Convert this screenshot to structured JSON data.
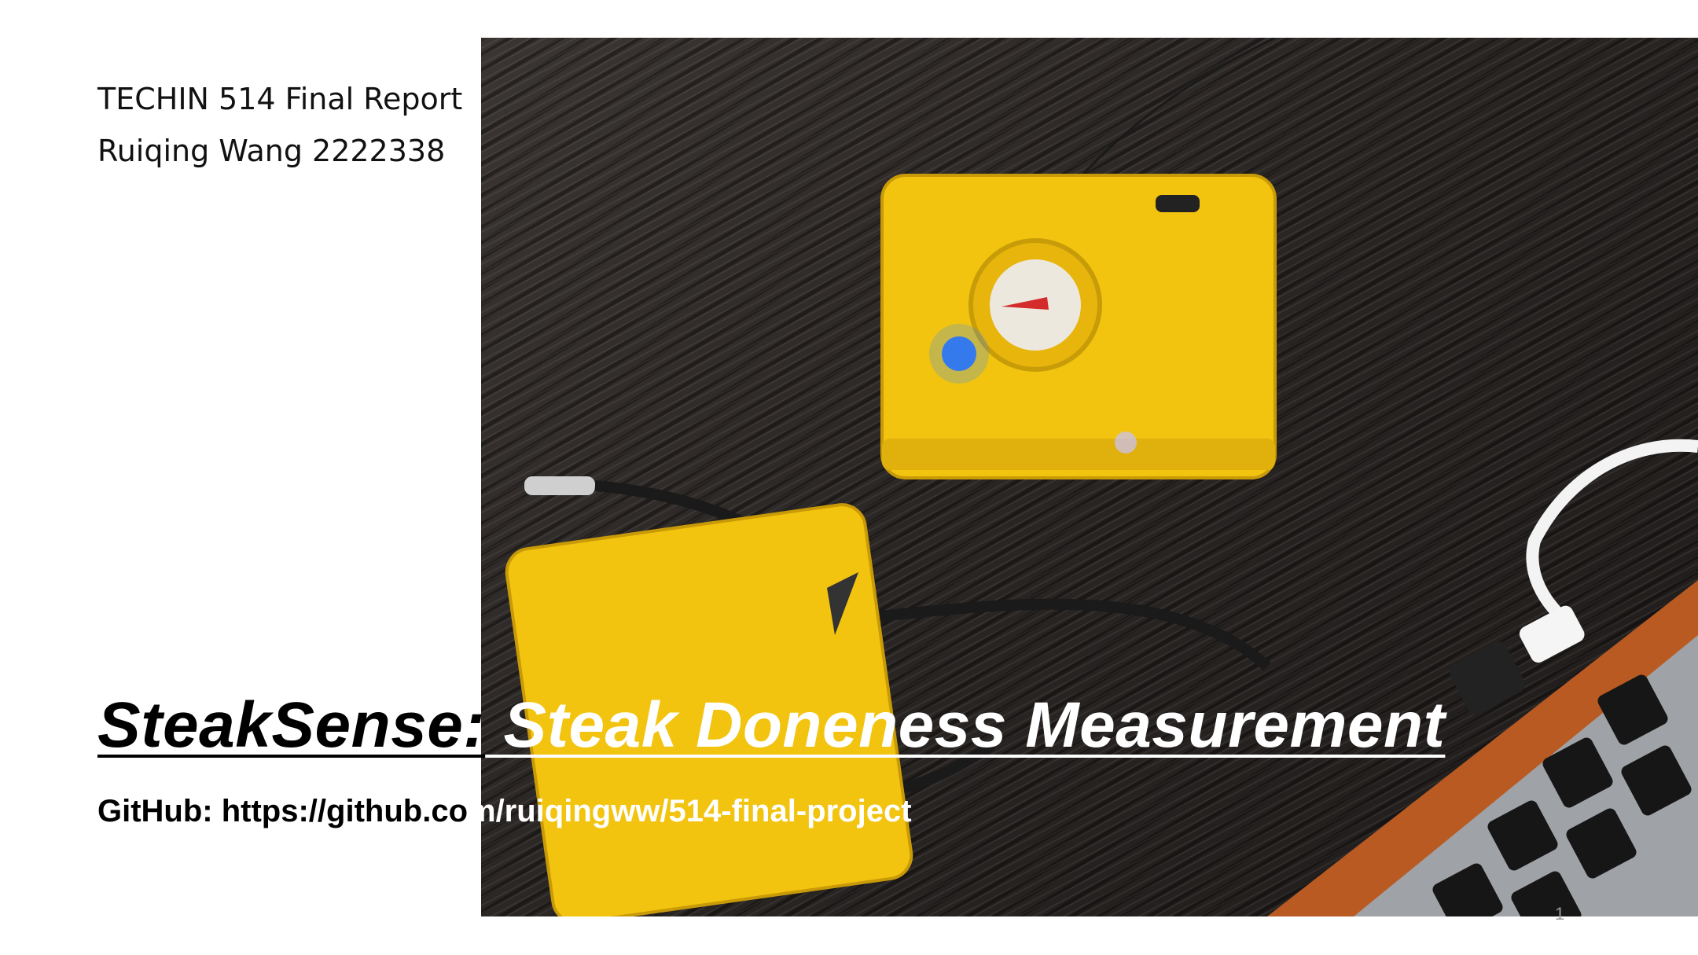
{
  "header": {
    "course": "TECHIN 514 Final Report",
    "author": "Ruiqing Wang 2222338"
  },
  "title": {
    "part1": "SteakSense:",
    "part2": " Steak Doneness",
    "part3": " Measurement"
  },
  "github": {
    "label_dark": "GitHub: https://github.co",
    "label_light": "m/ruiqingww/514-final-project"
  },
  "slide_number": "1",
  "colors": {
    "device_yellow": "#f2c40f",
    "led_blue": "#1e6bff",
    "laptop_orange": "#b85a22"
  }
}
